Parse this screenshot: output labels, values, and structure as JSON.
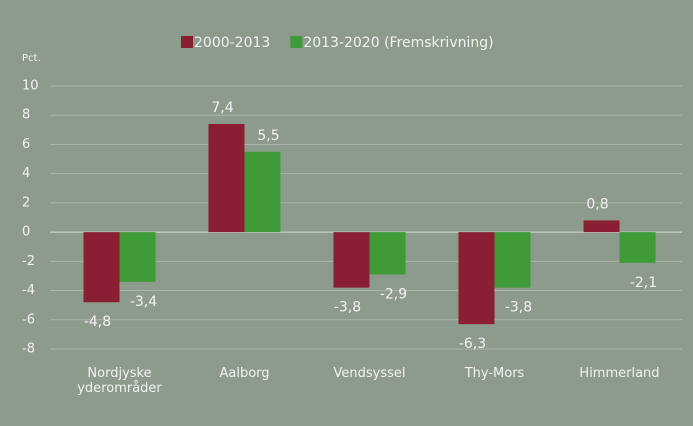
{
  "chart_data": {
    "type": "bar",
    "ylabel": "Pct.",
    "categories": [
      "Nordjyske yderområder",
      "Aalborg",
      "Vendsyssel",
      "Thy-Mors",
      "Himmerland"
    ],
    "series": [
      {
        "name": "2000-2013",
        "color": "#8a1f33",
        "values": [
          -4.8,
          7.4,
          -3.8,
          -6.3,
          0.8
        ],
        "value_labels": [
          "-4,8",
          "7,4",
          "-3,8",
          "-6,3",
          "0,8"
        ]
      },
      {
        "name": "2013-2020 (Fremskrivning)",
        "color": "#3f9a38",
        "values": [
          -3.4,
          5.5,
          -2.9,
          -3.8,
          -2.1
        ],
        "value_labels": [
          "-3,4",
          "5,5",
          "-2,9",
          "-3,8",
          "-2,1"
        ]
      }
    ],
    "ylim": [
      -8,
      10
    ],
    "yticks": [
      -8,
      -6,
      -4,
      -2,
      0,
      2,
      4,
      6,
      8,
      10
    ],
    "grid": true,
    "legend": "top"
  }
}
